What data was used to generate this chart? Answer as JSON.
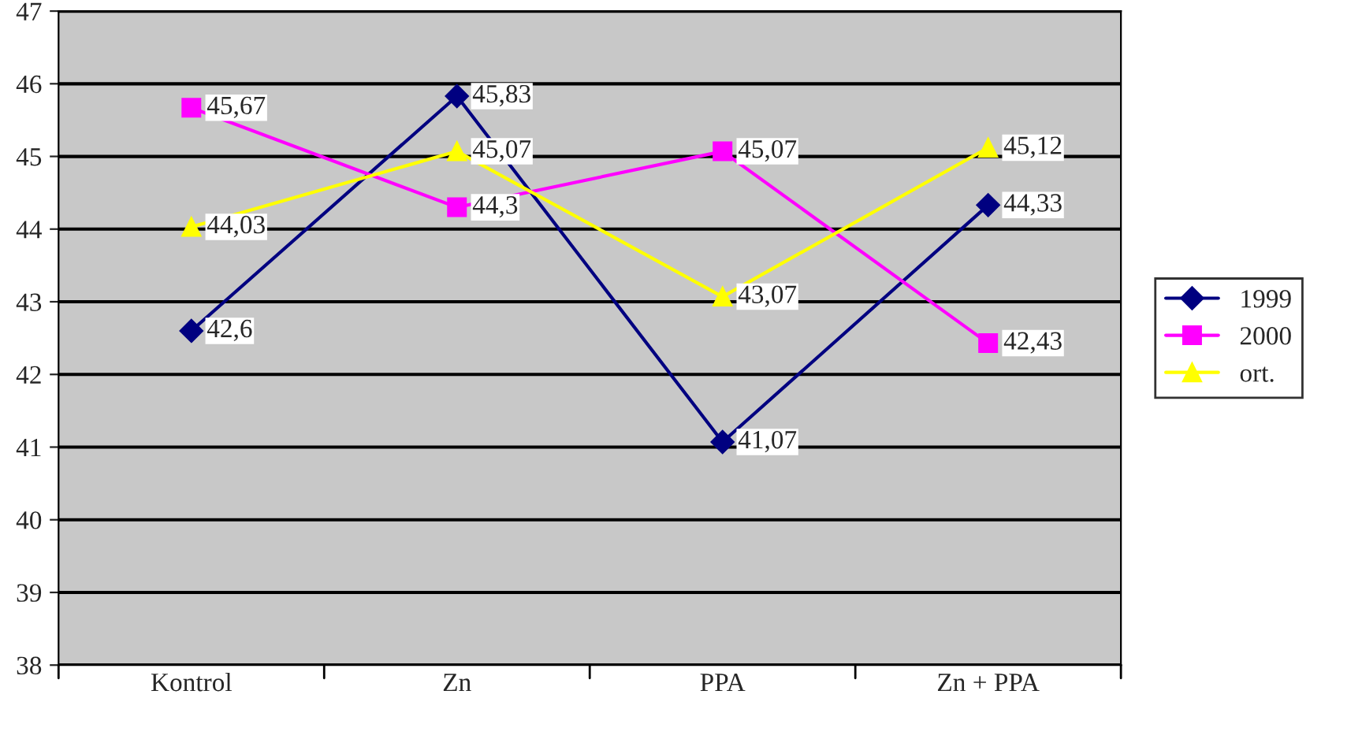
{
  "chart_data": {
    "type": "line",
    "categories": [
      "Kontrol",
      "Zn",
      "PPA",
      "Zn + PPA"
    ],
    "series": [
      {
        "name": "1999",
        "color": "#000080",
        "marker": "diamond",
        "values": [
          42.6,
          45.83,
          41.07,
          44.33
        ],
        "value_labels": [
          "42,6",
          "45,83",
          "41,07",
          "44,33"
        ]
      },
      {
        "name": "2000",
        "color": "#ff00ff",
        "marker": "square",
        "values": [
          45.67,
          44.3,
          45.07,
          42.43
        ],
        "value_labels": [
          "45,67",
          "44,3",
          "45,07",
          "42,43"
        ]
      },
      {
        "name": "ort.",
        "color": "#ffff00",
        "marker": "triangle",
        "values": [
          44.03,
          45.07,
          43.07,
          45.12
        ],
        "value_labels": [
          "44,03",
          "45,07",
          "43,07",
          "45,12"
        ]
      }
    ],
    "ylim": [
      38,
      47
    ],
    "yticks": [
      38,
      39,
      40,
      41,
      42,
      43,
      44,
      45,
      46,
      47
    ],
    "grid": "y",
    "legend": "right",
    "line_style": "solid"
  }
}
